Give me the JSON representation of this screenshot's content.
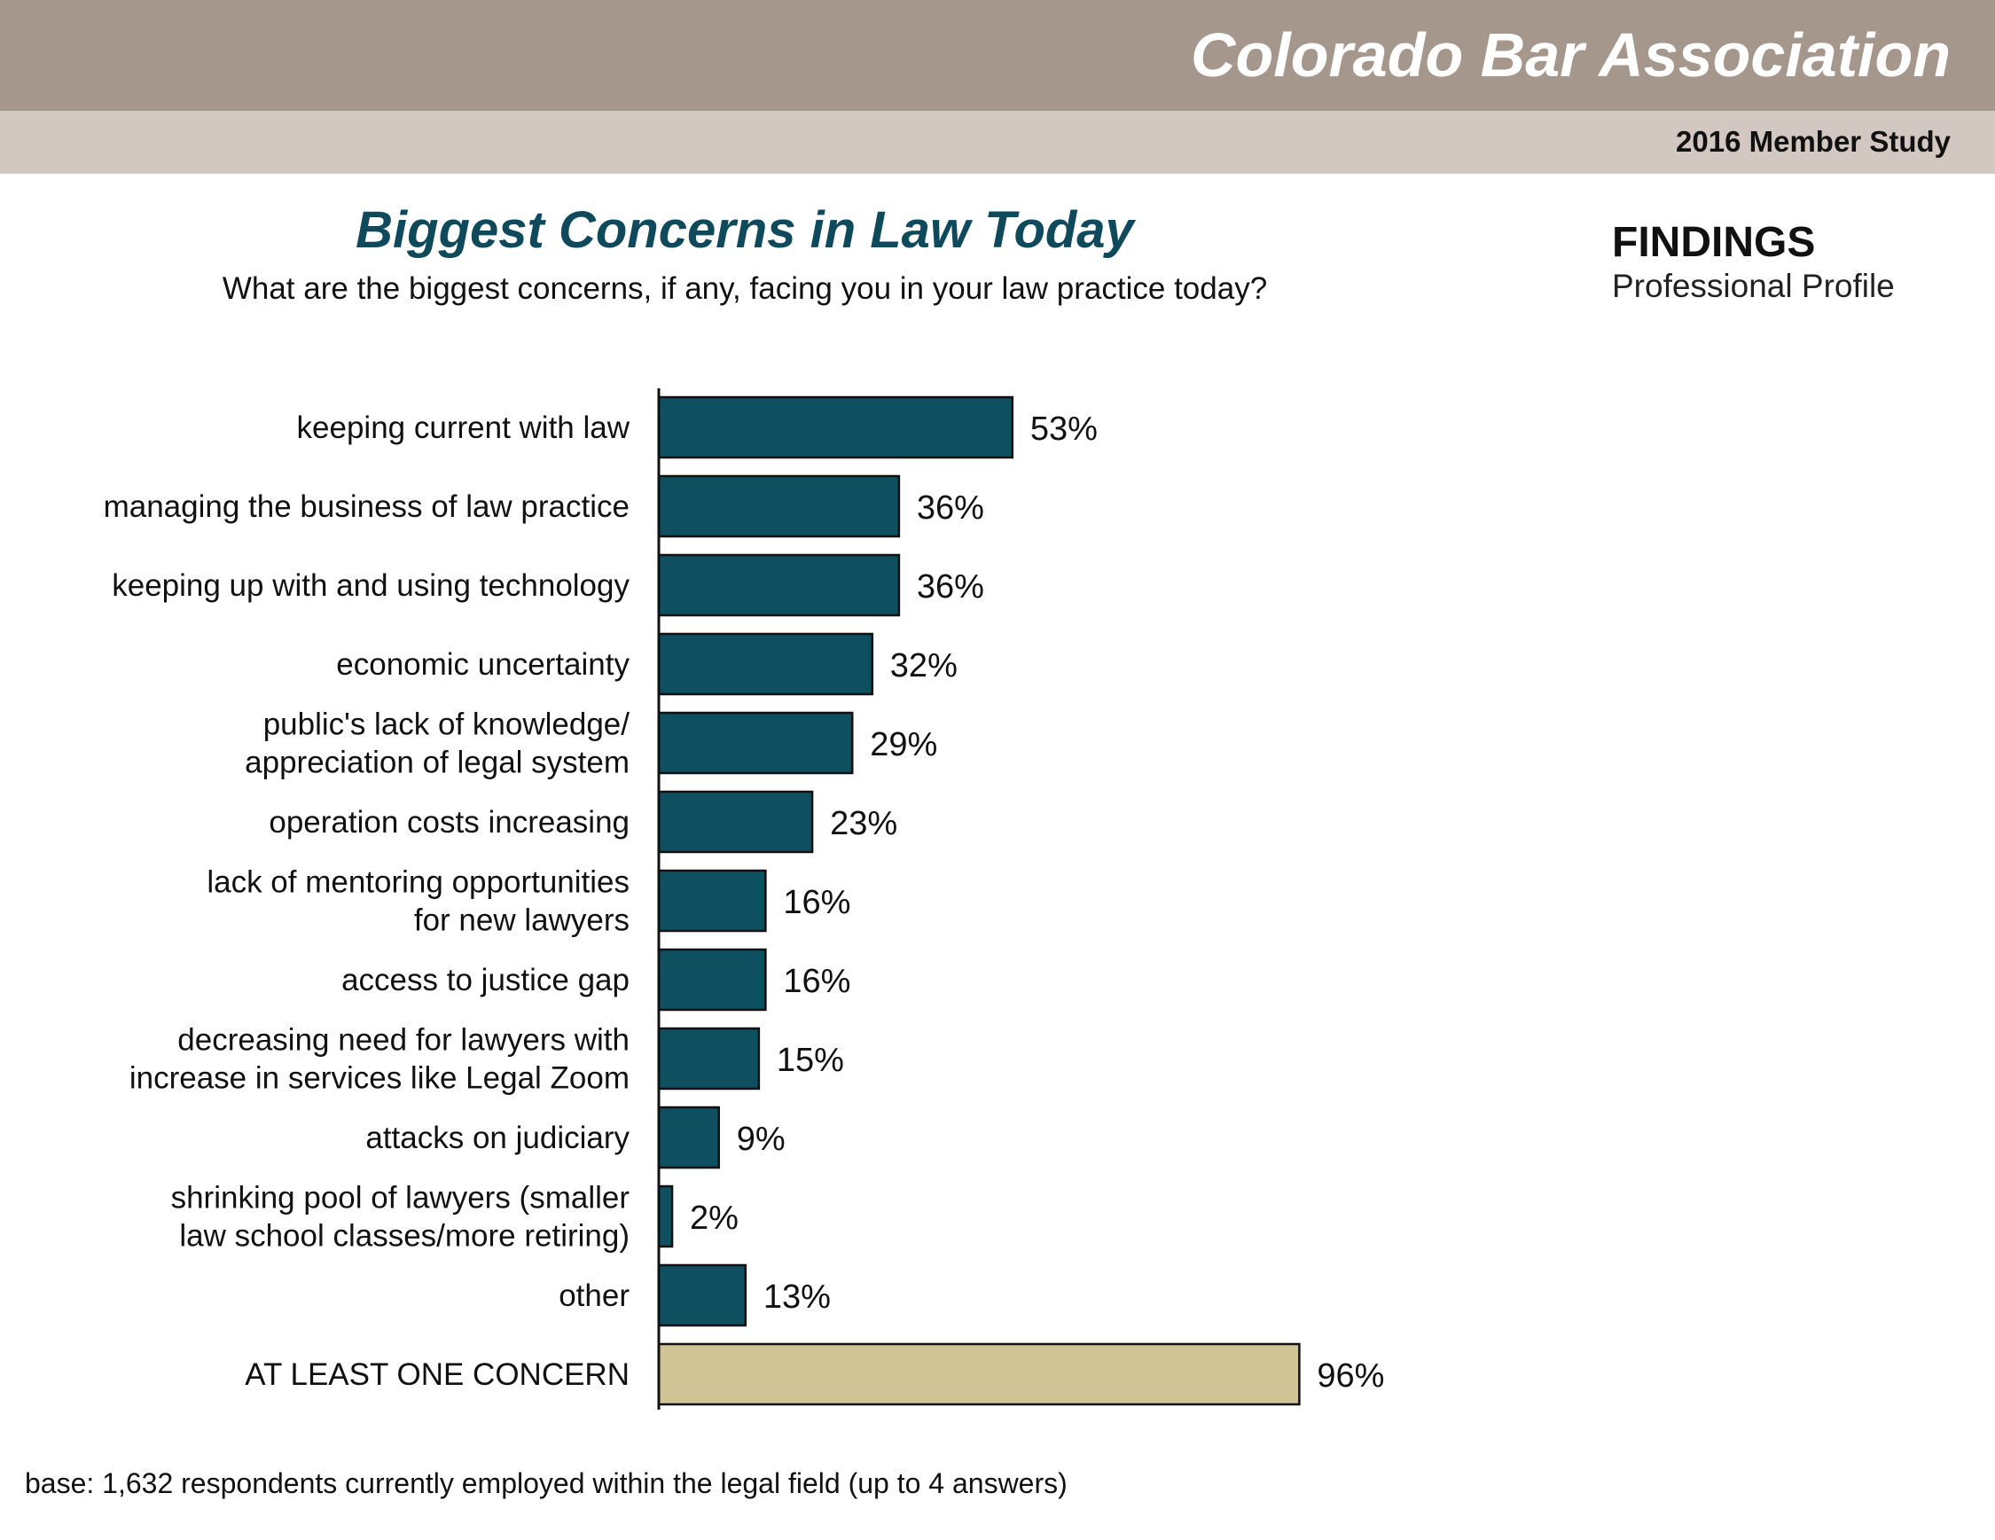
{
  "header": {
    "org_name": "Colorado Bar Association",
    "study_label": "2016 Member Study"
  },
  "findings": {
    "title": "FINDINGS",
    "subtitle": "Professional Profile"
  },
  "footnote": "base:  1,632 respondents currently employed within the legal field (up to 4 answers)",
  "colors": {
    "bar": "#0e4f60",
    "total_bar": "#d0c497",
    "title": "#0e4a5c",
    "header_band": "#a5978c",
    "sub_band": "#d2c8c1"
  },
  "chart_data": {
    "type": "bar",
    "orientation": "horizontal",
    "title": "Biggest Concerns in Law Today",
    "subtitle": "What are the biggest concerns, if any, facing you in your law practice today?",
    "xlabel": "",
    "ylabel": "",
    "xlim": [
      0,
      100
    ],
    "grid": false,
    "legend": "none",
    "categories": [
      [
        "keeping current with law"
      ],
      [
        "managing the business of law practice"
      ],
      [
        "keeping up with and using technology"
      ],
      [
        "economic uncertainty"
      ],
      [
        "public's lack of knowledge/",
        "appreciation of legal system"
      ],
      [
        "operation costs increasing"
      ],
      [
        "lack of mentoring opportunities",
        "for new lawyers"
      ],
      [
        "access to justice gap"
      ],
      [
        "decreasing need for lawyers with",
        "increase in services like Legal Zoom"
      ],
      [
        "attacks on judiciary"
      ],
      [
        "shrinking pool of lawyers (smaller",
        "law school classes/more retiring)"
      ],
      [
        "other"
      ],
      [
        "AT LEAST ONE CONCERN"
      ]
    ],
    "values": [
      53,
      36,
      36,
      32,
      29,
      23,
      16,
      16,
      15,
      9,
      2,
      13,
      96
    ],
    "value_labels": [
      "53%",
      "36%",
      "36%",
      "32%",
      "29%",
      "23%",
      "16%",
      "16%",
      "15%",
      "9%",
      "2%",
      "13%",
      "96%"
    ],
    "highlight_index": 12
  }
}
